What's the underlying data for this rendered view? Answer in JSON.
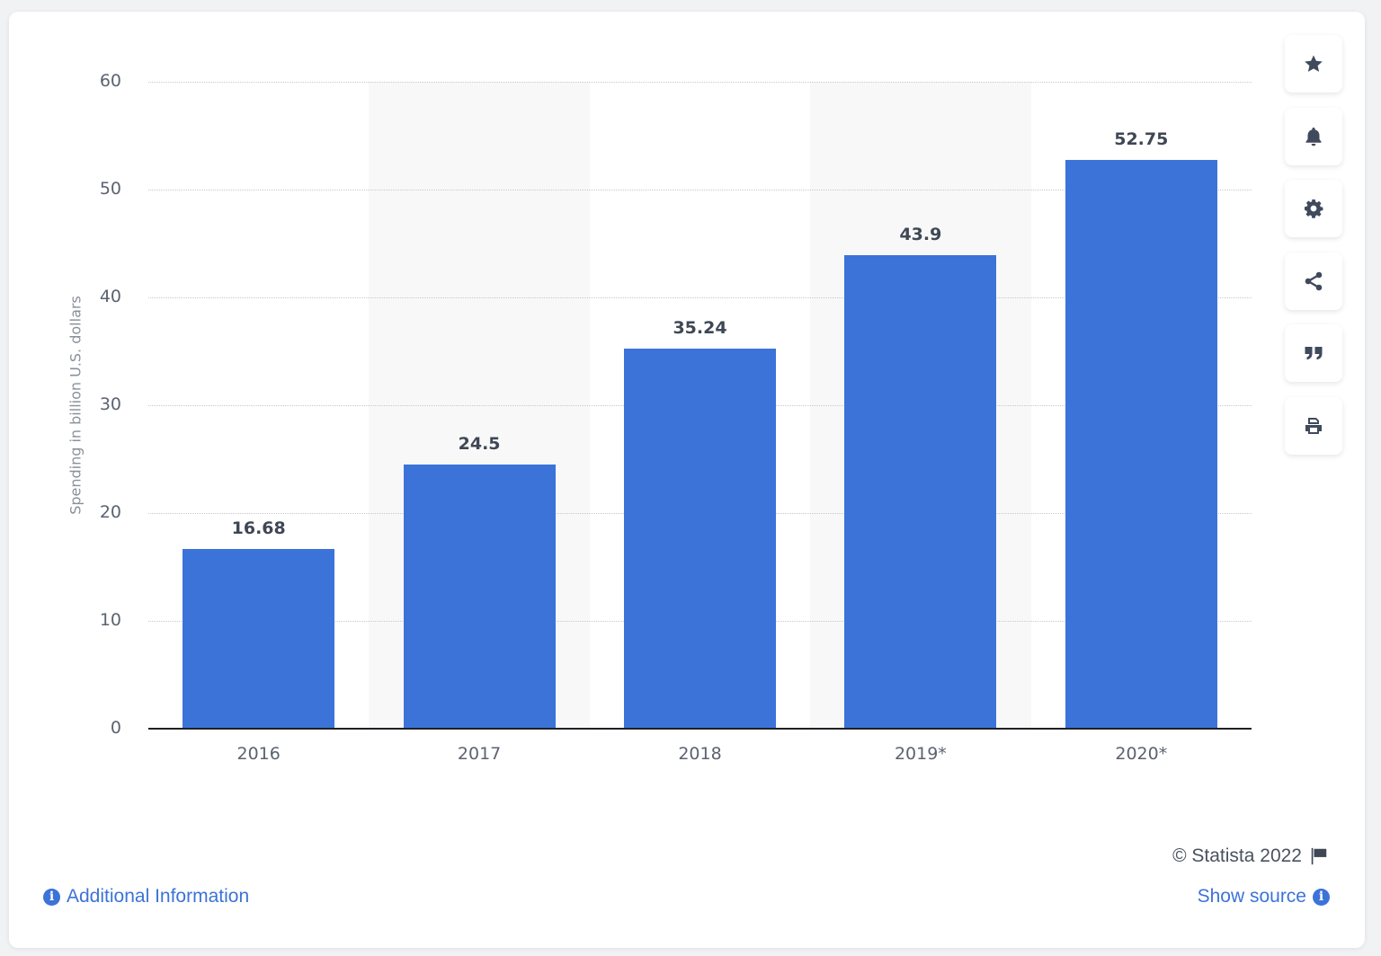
{
  "chart_data": {
    "type": "bar",
    "title": "",
    "xlabel": "",
    "ylabel": "Spending in billion U.S. dollars",
    "categories": [
      "2016",
      "2017",
      "2018",
      "2019*",
      "2020*"
    ],
    "values": [
      16.68,
      24.5,
      35.24,
      43.9,
      52.75
    ],
    "data_labels": [
      "16.68",
      "24.5",
      "35.24",
      "43.9",
      "52.75"
    ],
    "ylim": [
      0,
      60
    ],
    "yticks": [
      "0",
      "10",
      "20",
      "30",
      "40",
      "50",
      "60"
    ],
    "grid": true,
    "legend": null,
    "bar_color": "#3c73d8"
  },
  "toolbar": {
    "buttons": [
      {
        "name": "star-icon",
        "label": "Favorite"
      },
      {
        "name": "bell-icon",
        "label": "Notifications"
      },
      {
        "name": "gear-icon",
        "label": "Settings"
      },
      {
        "name": "share-icon",
        "label": "Share"
      },
      {
        "name": "quote-icon",
        "label": "Cite"
      },
      {
        "name": "print-icon",
        "label": "Print"
      }
    ]
  },
  "footer": {
    "credit": "© Statista 2022",
    "additional_info": "Additional Information",
    "show_source": "Show source"
  },
  "colors": {
    "accent": "#3c73d8",
    "label_text": "#3f4754",
    "axis_text": "#5b6370"
  }
}
